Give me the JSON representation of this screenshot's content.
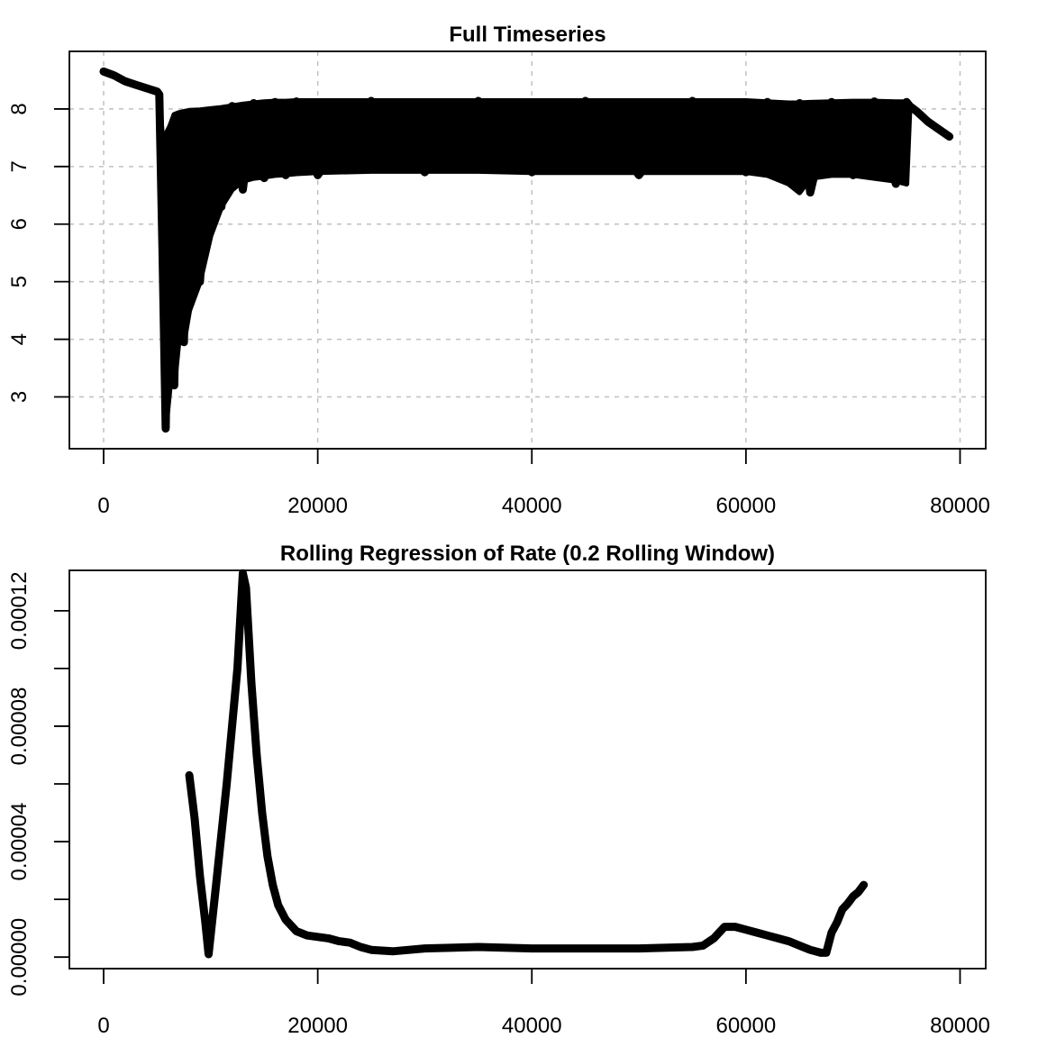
{
  "chart_data": [
    {
      "type": "line",
      "title": "Full Timeseries",
      "xlabel": "",
      "ylabel": "",
      "xlim": [
        -3200,
        82400
      ],
      "ylim": [
        2.1,
        9.0
      ],
      "xticks": [
        0,
        20000,
        40000,
        60000,
        80000
      ],
      "xtick_labels": [
        "0",
        "20000",
        "40000",
        "60000",
        "80000"
      ],
      "yticks": [
        3,
        4,
        5,
        6,
        7,
        8
      ],
      "ytick_labels": [
        "3",
        "4",
        "5",
        "6",
        "7",
        "8"
      ],
      "grid": true,
      "series": [
        {
          "x": [
            0,
            1000,
            2000,
            3000,
            4000,
            5000,
            5200,
            5500,
            5800,
            6200,
            6600,
            7000,
            7500,
            8000,
            9000,
            10000,
            11000,
            12000,
            13000,
            14000,
            15000,
            16000,
            17000,
            18000,
            20000,
            25000,
            30000,
            35000,
            40000,
            45000,
            50000,
            55000,
            60000,
            62000,
            64000,
            65000,
            66000,
            68000,
            70000,
            72000,
            74000,
            75000,
            75300,
            76000,
            77000,
            78000,
            79000
          ],
          "y": [
            8.65,
            8.58,
            8.48,
            8.42,
            8.36,
            8.3,
            8.25,
            5.5,
            2.45,
            7.5,
            3.2,
            7.8,
            3.95,
            7.9,
            5.0,
            7.95,
            6.3,
            8.05,
            6.6,
            8.1,
            6.8,
            8.12,
            6.85,
            8.13,
            6.85,
            8.14,
            6.9,
            8.14,
            6.9,
            8.14,
            6.85,
            8.14,
            6.9,
            8.12,
            6.75,
            8.1,
            6.55,
            8.12,
            6.85,
            8.13,
            6.7,
            8.12,
            8.05,
            7.95,
            7.78,
            7.65,
            7.52
          ],
          "upper": [
            8.65,
            8.58,
            8.48,
            8.42,
            8.36,
            8.3,
            8.25,
            7.4,
            7.55,
            7.7,
            7.9,
            7.93,
            7.95,
            7.97,
            7.98,
            8.0,
            8.02,
            8.05,
            8.08,
            8.1,
            8.12,
            8.13,
            8.13,
            8.14,
            8.14,
            8.14,
            8.14,
            8.14,
            8.14,
            8.14,
            8.14,
            8.14,
            8.14,
            8.12,
            8.1,
            8.1,
            8.11,
            8.12,
            8.13,
            8.13,
            8.12,
            8.12,
            8.05,
            7.95,
            7.78,
            7.65,
            7.52
          ],
          "lower": [
            8.65,
            8.58,
            8.48,
            8.42,
            8.36,
            8.3,
            8.25,
            5.5,
            2.45,
            3.2,
            3.2,
            3.95,
            3.95,
            4.5,
            5.0,
            5.8,
            6.3,
            6.6,
            6.75,
            6.8,
            6.82,
            6.85,
            6.86,
            6.88,
            6.9,
            6.92,
            6.92,
            6.92,
            6.9,
            6.9,
            6.9,
            6.9,
            6.9,
            6.85,
            6.7,
            6.55,
            6.8,
            6.85,
            6.85,
            6.8,
            6.75,
            6.7,
            8.05,
            7.95,
            7.78,
            7.65,
            7.52
          ]
        }
      ]
    },
    {
      "type": "line",
      "title": "Rolling Regression of Rate (0.2 Rolling Window)",
      "xlabel": "",
      "ylabel": "",
      "xlim": [
        -3200,
        82400
      ],
      "ylim": [
        -4e-06,
        0.000134
      ],
      "xticks": [
        0,
        20000,
        40000,
        60000,
        80000
      ],
      "xtick_labels": [
        "0",
        "20000",
        "40000",
        "60000",
        "80000"
      ],
      "yticks": [
        0,
        2e-05,
        4e-05,
        6e-05,
        8e-05,
        0.0001,
        0.00012
      ],
      "ytick_labels": [
        "0.00000",
        "",
        "0.00004",
        "",
        "0.00008",
        "",
        "0.00012"
      ],
      "grid": false,
      "series": [
        {
          "x": [
            8000,
            8500,
            9000,
            9500,
            9800,
            10500,
            11500,
            12500,
            13000,
            13300,
            13800,
            14300,
            14800,
            15300,
            15800,
            16300,
            17000,
            18000,
            19000,
            20000,
            21000,
            22000,
            23000,
            24000,
            25000,
            27000,
            30000,
            35000,
            40000,
            45000,
            50000,
            55000,
            56000,
            57000,
            58000,
            59000,
            60000,
            61000,
            62000,
            63000,
            64000,
            65000,
            66000,
            67000,
            67500,
            68000,
            68500,
            69000,
            69500,
            70000,
            70500,
            71000
          ],
          "y": [
            6.3e-05,
            4.8e-05,
            2.8e-05,
            1.2e-05,
            1e-06,
            2.5e-05,
            6e-05,
            0.0001,
            0.000133,
            0.000128,
            9.5e-05,
            7e-05,
            5e-05,
            3.5e-05,
            2.5e-05,
            1.8e-05,
            1.3e-05,
            9e-06,
            7.5e-06,
            7e-06,
            6.5e-06,
            5.5e-06,
            5e-06,
            3.5e-06,
            2.5e-06,
            2e-06,
            3e-06,
            3.5e-06,
            3e-06,
            3e-06,
            3e-06,
            3.5e-06,
            4e-06,
            6.5e-06,
            1.05e-05,
            1.05e-05,
            9.5e-06,
            8.5e-06,
            7.5e-06,
            6.5e-06,
            5.5e-06,
            4e-06,
            2.5e-06,
            1.5e-06,
            1.5e-06,
            8.5e-06,
            1.2e-05,
            1.65e-05,
            1.85e-05,
            2.1e-05,
            2.25e-05,
            2.5e-05
          ]
        }
      ]
    }
  ]
}
